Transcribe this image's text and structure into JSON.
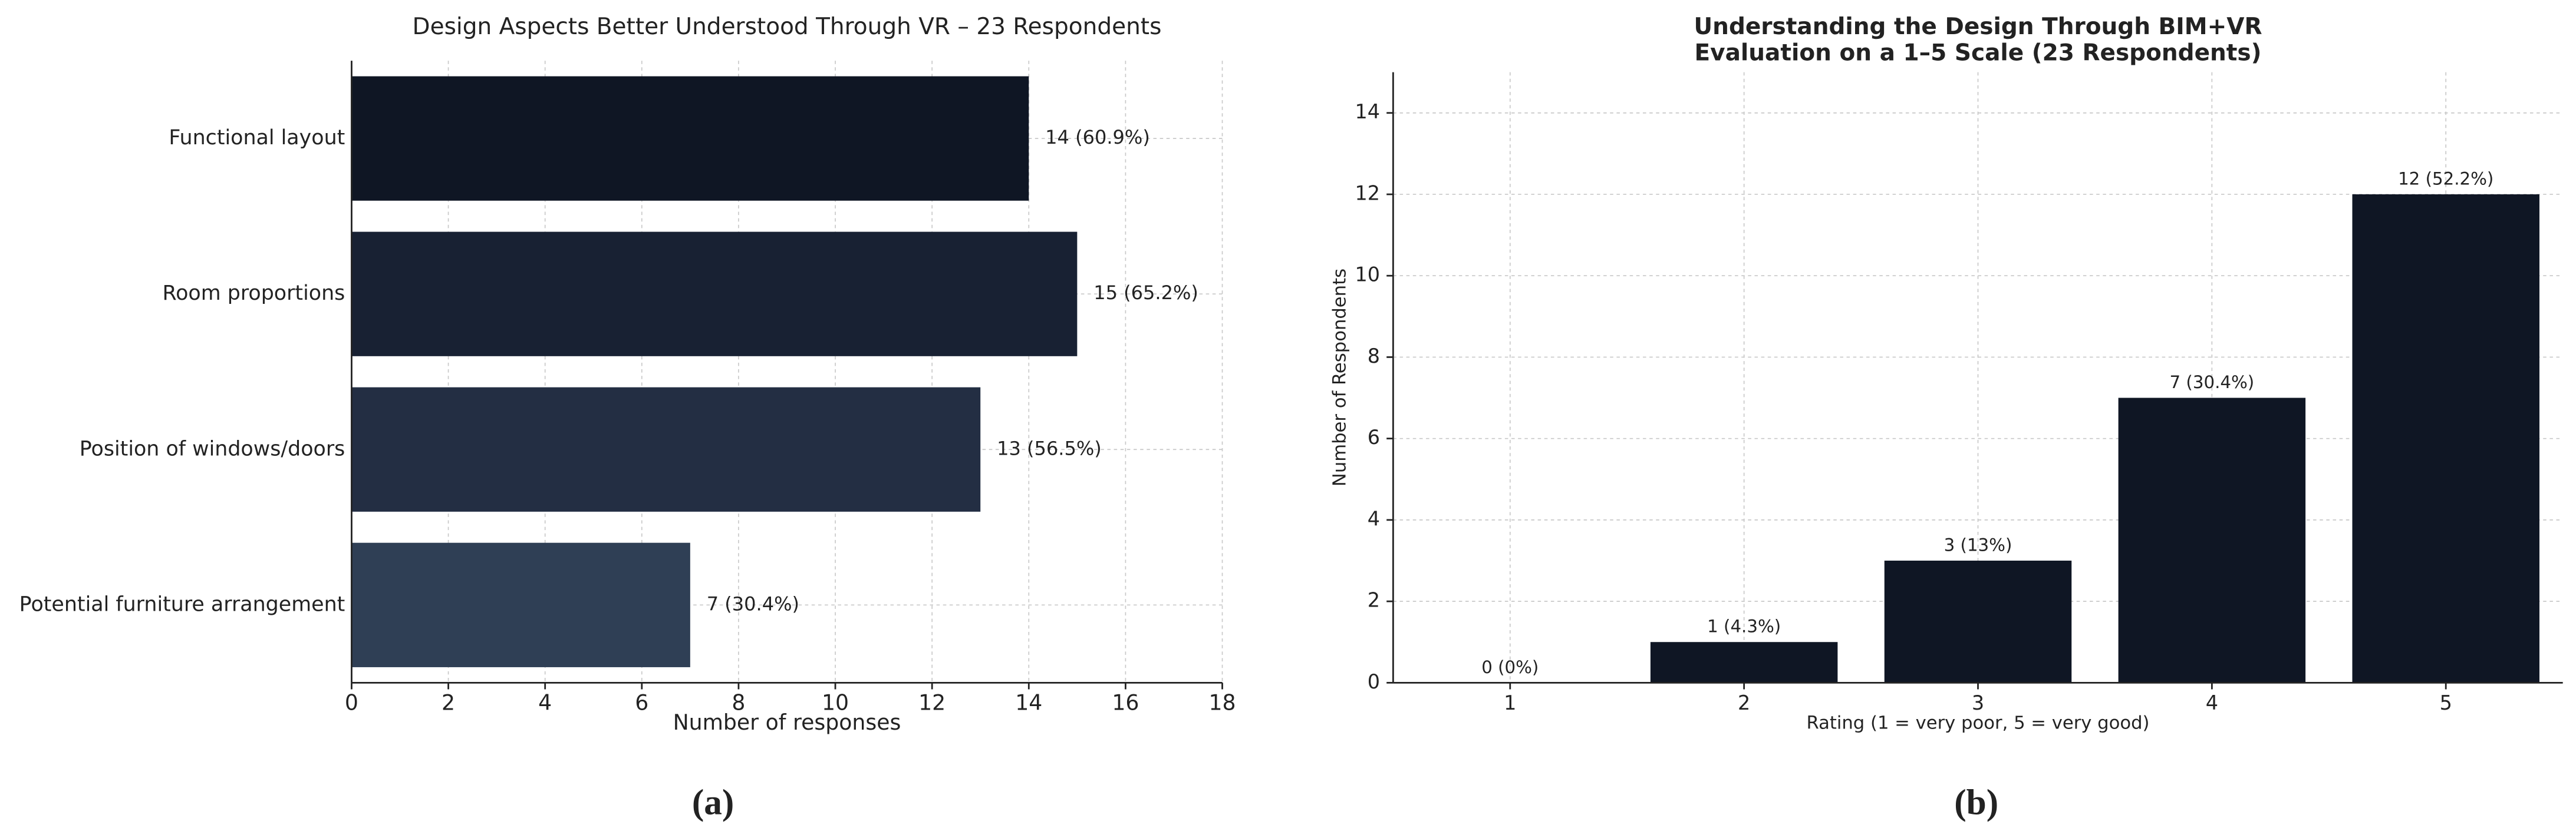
{
  "chart_data": [
    {
      "type": "barh",
      "title": "Design Aspects Better Understood Through VR – 23 Respondents",
      "categories": [
        "Functional layout",
        "Room proportions",
        "Position of windows/doors",
        "Potential furniture arrangement"
      ],
      "values": [
        14,
        15,
        13,
        7
      ],
      "value_labels": [
        "14 (60.9%)",
        "15 (65.2%)",
        "13 (56.5%)",
        "7 (30.4%)"
      ],
      "colors": [
        "#0f1624",
        "#182133",
        "#232e43",
        "#2f3f55"
      ],
      "xlabel": "Number of responses",
      "xlim": [
        0,
        18
      ],
      "xticks": [
        0,
        2,
        4,
        6,
        8,
        10,
        12,
        14,
        16,
        18
      ],
      "grid": true,
      "caption": "(a)"
    },
    {
      "type": "bar",
      "title": "Understanding the Design Through BIM+VR",
      "subtitle": "Evaluation on a 1–5 Scale (23 Respondents)",
      "categories": [
        "1",
        "2",
        "3",
        "4",
        "5"
      ],
      "values": [
        0,
        1,
        3,
        7,
        12
      ],
      "value_labels": [
        "0 (0%)",
        "1 (4.3%)",
        "3 (13%)",
        "7 (30.4%)",
        "12 (52.2%)"
      ],
      "color": "#0f1624",
      "xlabel": "Rating (1 = very poor, 5 = very good)",
      "ylabel": "Number of Respondents",
      "ylim": [
        0,
        15
      ],
      "yticks": [
        0,
        2,
        4,
        6,
        8,
        10,
        12,
        14
      ],
      "grid": true,
      "caption": "(b)"
    }
  ]
}
